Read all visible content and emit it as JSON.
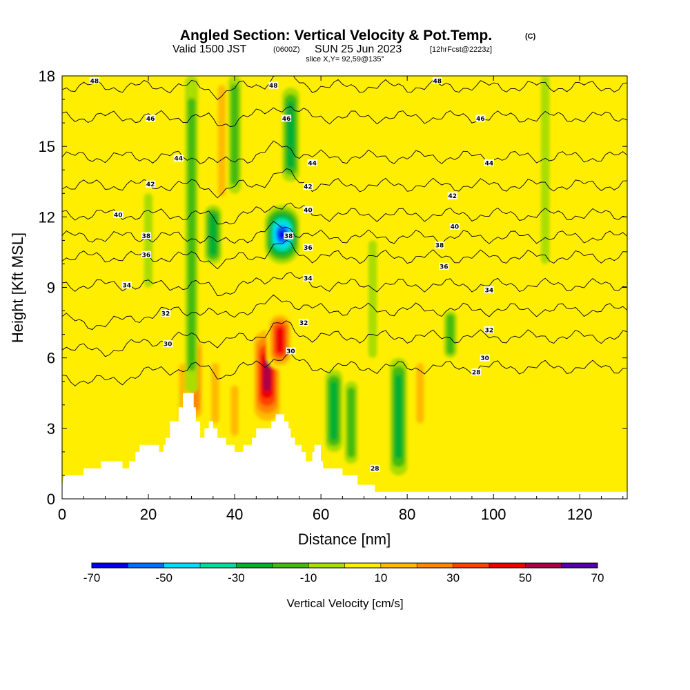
{
  "chart_data": {
    "type": "heatmap",
    "title": "Angled Section: Vertical Velocity & Pot.Temp.",
    "title_mark": "(C)",
    "subtitle": {
      "valid": "Valid 1500 JST",
      "utc": "(0600Z)",
      "date": "SUN 25 Jun 2023",
      "fcst": "[12hrFcst@2223z]",
      "slice": "slice X,Y= 92,59@135°"
    },
    "xlabel": "Distance [nm]",
    "ylabel": "Height [Kft MSL]",
    "xlim": [
      0,
      131
    ],
    "ylim": [
      0,
      18
    ],
    "x_ticks": [
      0,
      20,
      40,
      60,
      80,
      100,
      120
    ],
    "y_ticks": [
      0,
      3,
      6,
      9,
      12,
      15,
      18
    ],
    "grid": false,
    "colorbar": {
      "label": "Vertical Velocity [cm/s]",
      "ticks": [
        -70,
        -50,
        -30,
        -10,
        10,
        30,
        50,
        70
      ],
      "bounds": [
        -70,
        -60,
        -50,
        -40,
        -30,
        -20,
        -10,
        0,
        10,
        20,
        30,
        40,
        50,
        60,
        70
      ],
      "colors": [
        "#0000ee",
        "#0070ff",
        "#00ddff",
        "#00dda0",
        "#00b030",
        "#44bb10",
        "#aadd00",
        "#ffee00",
        "#ffbb00",
        "#ff8800",
        "#ff4400",
        "#ee0000",
        "#aa0044",
        "#5500aa"
      ]
    },
    "background_value_color": "#ffee00",
    "updraft_cores": [
      {
        "x": 37,
        "y1": 12.5,
        "y2": 18,
        "w": 20
      },
      {
        "x": 31,
        "y1": 3.2,
        "y2": 7,
        "w": 30
      },
      {
        "x": 47.5,
        "y1": 3,
        "y2": 7.5,
        "w": 60
      },
      {
        "x": 50.5,
        "y1": 5.5,
        "y2": 8,
        "w": 50
      },
      {
        "x": 28,
        "y1": 2.5,
        "y2": 6,
        "w": 20
      },
      {
        "x": 35.5,
        "y1": 3,
        "y2": 6,
        "w": 20
      },
      {
        "x": 40,
        "y1": 2.5,
        "y2": 5,
        "w": 20
      },
      {
        "x": 58,
        "y1": 11,
        "y2": 16,
        "w": 10
      },
      {
        "x": 83,
        "y1": 3,
        "y2": 6,
        "w": 20
      },
      {
        "x": 103,
        "y1": 1,
        "y2": 3,
        "w": 10
      },
      {
        "x": 118,
        "y1": 2,
        "y2": 4,
        "w": 10
      }
    ],
    "downdraft_cores": [
      {
        "x": 51,
        "y1": 10,
        "y2": 12.5,
        "w": -70
      },
      {
        "x": 53,
        "y1": 13.5,
        "y2": 17.5,
        "w": -30
      },
      {
        "x": 30,
        "y1": 4.5,
        "y2": 18,
        "w": -20
      },
      {
        "x": 35,
        "y1": 10,
        "y2": 12.5,
        "w": -30
      },
      {
        "x": 40,
        "y1": 13,
        "y2": 18,
        "w": -20
      },
      {
        "x": 78,
        "y1": 1,
        "y2": 6,
        "w": -30
      },
      {
        "x": 63,
        "y1": 2,
        "y2": 5.5,
        "w": -30
      },
      {
        "x": 67,
        "y1": 1.5,
        "y2": 5,
        "w": -20
      },
      {
        "x": 72,
        "y1": 6,
        "y2": 11,
        "w": -10
      },
      {
        "x": 90,
        "y1": 6,
        "y2": 8,
        "w": -20
      },
      {
        "x": 20,
        "y1": 9,
        "y2": 13,
        "w": -10
      },
      {
        "x": 112,
        "y1": 10,
        "y2": 18,
        "w": -10
      }
    ],
    "contour_labels": [
      {
        "x": 7.5,
        "y": 17.8,
        "text": "48"
      },
      {
        "x": 49,
        "y": 17.6,
        "text": "48"
      },
      {
        "x": 87,
        "y": 17.8,
        "text": "48"
      },
      {
        "x": 20.5,
        "y": 16.2,
        "text": "46"
      },
      {
        "x": 52,
        "y": 16.2,
        "text": "46"
      },
      {
        "x": 97,
        "y": 16.2,
        "text": "46"
      },
      {
        "x": 27,
        "y": 14.5,
        "text": "44"
      },
      {
        "x": 58,
        "y": 14.3,
        "text": "44"
      },
      {
        "x": 99,
        "y": 14.3,
        "text": "44"
      },
      {
        "x": 20.5,
        "y": 13.4,
        "text": "42"
      },
      {
        "x": 57,
        "y": 13.3,
        "text": "42"
      },
      {
        "x": 90.5,
        "y": 12.9,
        "text": "42"
      },
      {
        "x": 13,
        "y": 12.1,
        "text": "40"
      },
      {
        "x": 57,
        "y": 12.3,
        "text": "40"
      },
      {
        "x": 91,
        "y": 11.6,
        "text": "40"
      },
      {
        "x": 19.5,
        "y": 11.2,
        "text": "38"
      },
      {
        "x": 52.5,
        "y": 11.2,
        "text": "38"
      },
      {
        "x": 87.5,
        "y": 10.8,
        "text": "38"
      },
      {
        "x": 19.5,
        "y": 10.4,
        "text": "36"
      },
      {
        "x": 57,
        "y": 10.7,
        "text": "36"
      },
      {
        "x": 88.5,
        "y": 9.9,
        "text": "36"
      },
      {
        "x": 15,
        "y": 9.1,
        "text": "34"
      },
      {
        "x": 57,
        "y": 9.4,
        "text": "34"
      },
      {
        "x": 99,
        "y": 8.9,
        "text": "34"
      },
      {
        "x": 24,
        "y": 7.9,
        "text": "32"
      },
      {
        "x": 56,
        "y": 7.5,
        "text": "32"
      },
      {
        "x": 99,
        "y": 7.2,
        "text": "32"
      },
      {
        "x": 24.5,
        "y": 6.6,
        "text": "30"
      },
      {
        "x": 53,
        "y": 6.3,
        "text": "30"
      },
      {
        "x": 98,
        "y": 6.0,
        "text": "30"
      },
      {
        "x": 96,
        "y": 5.4,
        "text": "28"
      },
      {
        "x": 72.5,
        "y": 1.3,
        "text": "28"
      }
    ],
    "theta_contours": [
      {
        "value": 48,
        "base": 17.55
      },
      {
        "value": 46,
        "base": 16.25
      },
      {
        "value": 44,
        "base": 14.55
      },
      {
        "value": 42,
        "base": 13.35
      },
      {
        "value": 40,
        "base": 12.1
      },
      {
        "value": 38,
        "base": 11.15
      },
      {
        "value": 36,
        "base": 10.3
      },
      {
        "value": 34,
        "base": 9.1
      },
      {
        "value": 32,
        "base": 7.75
      },
      {
        "value": 30,
        "base": 6.6
      },
      {
        "value": 28,
        "base": 5.3
      }
    ],
    "terrain": [
      [
        0,
        0.6
      ],
      [
        0.5,
        1.0
      ],
      [
        5,
        1.0
      ],
      [
        5,
        1.3
      ],
      [
        9,
        1.3
      ],
      [
        9,
        1.6
      ],
      [
        14,
        1.6
      ],
      [
        14,
        1.3
      ],
      [
        15.5,
        1.3
      ],
      [
        15.5,
        1.6
      ],
      [
        17,
        1.6
      ],
      [
        17,
        2.0
      ],
      [
        18,
        2.0
      ],
      [
        18,
        2.3
      ],
      [
        22.5,
        2.3
      ],
      [
        22.5,
        2.0
      ],
      [
        23.5,
        2.0
      ],
      [
        23.5,
        2.3
      ],
      [
        24,
        2.3
      ],
      [
        24,
        2.6
      ],
      [
        25,
        2.6
      ],
      [
        25,
        3.3
      ],
      [
        27,
        3.3
      ],
      [
        27,
        3.9
      ],
      [
        28,
        3.9
      ],
      [
        28,
        4.5
      ],
      [
        30.5,
        4.5
      ],
      [
        30.5,
        3.9
      ],
      [
        31,
        3.9
      ],
      [
        31,
        3.3
      ],
      [
        32,
        3.3
      ],
      [
        32,
        2.6
      ],
      [
        33,
        2.6
      ],
      [
        33,
        3.0
      ],
      [
        34,
        3.0
      ],
      [
        34,
        3.3
      ],
      [
        35,
        3.3
      ],
      [
        35,
        3.0
      ],
      [
        36,
        3.0
      ],
      [
        36,
        2.6
      ],
      [
        38,
        2.6
      ],
      [
        38,
        2.3
      ],
      [
        40,
        2.3
      ],
      [
        40,
        2.0
      ],
      [
        42,
        2.0
      ],
      [
        42,
        2.3
      ],
      [
        44,
        2.3
      ],
      [
        44,
        2.6
      ],
      [
        45,
        2.6
      ],
      [
        45,
        3.0
      ],
      [
        48.5,
        3.0
      ],
      [
        48.5,
        3.3
      ],
      [
        49.5,
        3.3
      ],
      [
        49.5,
        3.6
      ],
      [
        51.5,
        3.6
      ],
      [
        51.5,
        3.3
      ],
      [
        52.5,
        3.3
      ],
      [
        52.5,
        3.0
      ],
      [
        53,
        3.0
      ],
      [
        53,
        2.6
      ],
      [
        54,
        2.6
      ],
      [
        54,
        2.3
      ],
      [
        55.5,
        2.3
      ],
      [
        55.5,
        2.0
      ],
      [
        56.5,
        2.0
      ],
      [
        56.5,
        1.6
      ],
      [
        58,
        1.6
      ],
      [
        58,
        2.0
      ],
      [
        58.5,
        2.0
      ],
      [
        58.5,
        2.3
      ],
      [
        60,
        2.3
      ],
      [
        60,
        1.6
      ],
      [
        60.5,
        1.6
      ],
      [
        60.5,
        1.3
      ],
      [
        65,
        1.3
      ],
      [
        65,
        1.0
      ],
      [
        68.5,
        1.0
      ],
      [
        68.5,
        0.6
      ],
      [
        72.5,
        0.6
      ],
      [
        72.5,
        0.3
      ],
      [
        131,
        0.3
      ],
      [
        131,
        0
      ]
    ]
  }
}
